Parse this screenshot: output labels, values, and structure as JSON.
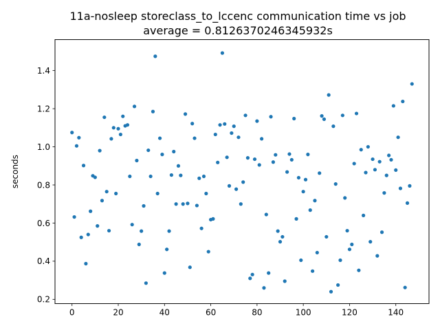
{
  "chart_data": {
    "type": "scatter",
    "title_line1": "11a-nosleep storeclass_to_lccenc communication time vs job",
    "title_line2": "average = 0.8126370246345932s",
    "xlabel": "",
    "ylabel": "seconds",
    "xlim": [
      -7.35,
      154.35
    ],
    "ylim": [
      0.1775,
      1.5625
    ],
    "xticks": [
      0,
      20,
      40,
      60,
      80,
      100,
      120,
      140
    ],
    "yticks": [
      0.2,
      0.4,
      0.6,
      0.8,
      1.0,
      1.2,
      1.4
    ],
    "ytick_labels": [
      "0.2",
      "0.4",
      "0.6",
      "0.8",
      "1.0",
      "1.2",
      "1.4"
    ],
    "grid": false,
    "marker_color": "#1f77b4",
    "x": [
      0,
      1,
      2,
      3,
      4,
      5,
      6,
      7,
      8,
      9,
      10,
      11,
      12,
      13,
      14,
      15,
      16,
      17,
      18,
      19,
      20,
      21,
      22,
      23,
      24,
      25,
      26,
      27,
      28,
      29,
      30,
      31,
      32,
      33,
      34,
      35,
      36,
      37,
      38,
      39,
      40,
      41,
      42,
      43,
      44,
      45,
      46,
      47,
      48,
      49,
      50,
      51,
      52,
      53,
      54,
      55,
      56,
      57,
      58,
      59,
      60,
      61,
      62,
      63,
      64,
      65,
      66,
      67,
      68,
      69,
      70,
      71,
      72,
      73,
      74,
      75,
      76,
      77,
      78,
      79,
      80,
      81,
      82,
      83,
      84,
      85,
      86,
      87,
      88,
      89,
      90,
      91,
      92,
      93,
      94,
      95,
      96,
      97,
      98,
      99,
      100,
      101,
      102,
      103,
      104,
      105,
      106,
      107,
      108,
      109,
      110,
      111,
      112,
      113,
      114,
      115,
      116,
      117,
      118,
      119,
      120,
      121,
      122,
      123,
      124,
      125,
      126,
      127,
      128,
      129,
      130,
      131,
      132,
      133,
      134,
      135,
      136,
      137,
      138,
      139,
      140,
      141,
      142,
      143,
      144,
      145,
      146,
      147
    ],
    "y": [
      1.075,
      0.632,
      1.005,
      1.048,
      0.525,
      0.902,
      0.387,
      0.54,
      0.662,
      0.848,
      0.84,
      0.585,
      0.98,
      0.718,
      1.155,
      0.765,
      0.56,
      1.042,
      1.1,
      0.755,
      1.095,
      1.065,
      1.16,
      1.11,
      1.115,
      0.845,
      0.592,
      1.212,
      0.928,
      0.488,
      0.558,
      0.69,
      0.285,
      0.982,
      0.845,
      1.185,
      1.475,
      0.755,
      1.045,
      0.96,
      0.338,
      0.462,
      0.558,
      0.852,
      0.975,
      0.7,
      0.9,
      0.85,
      0.7,
      1.172,
      0.703,
      0.368,
      1.122,
      1.045,
      0.692,
      0.835,
      0.572,
      0.845,
      0.755,
      0.45,
      0.618,
      0.622,
      1.065,
      0.918,
      1.115,
      1.492,
      1.12,
      0.945,
      0.795,
      1.072,
      1.108,
      0.778,
      1.05,
      0.7,
      0.815,
      1.165,
      0.942,
      0.31,
      0.33,
      0.935,
      1.135,
      0.905,
      1.042,
      0.26,
      0.645,
      0.338,
      1.158,
      0.92,
      0.958,
      0.558,
      0.502,
      0.528,
      0.295,
      0.868,
      0.962,
      0.932,
      1.148,
      0.622,
      0.838,
      0.405,
      0.765,
      0.828,
      0.96,
      0.668,
      0.348,
      0.718,
      0.445,
      0.862,
      1.162,
      1.145,
      0.528,
      1.272,
      0.24,
      1.108,
      0.805,
      0.275,
      0.405,
      1.165,
      0.732,
      0.56,
      0.462,
      0.488,
      0.912,
      1.175,
      0.352,
      0.985,
      0.64,
      0.865,
      1.0,
      0.502,
      0.935,
      0.88,
      0.428,
      0.922,
      0.552,
      0.758,
      0.85,
      0.955,
      0.932,
      1.215,
      0.878,
      1.05,
      0.782,
      1.238,
      0.262,
      0.705,
      0.795,
      1.33
    ]
  }
}
